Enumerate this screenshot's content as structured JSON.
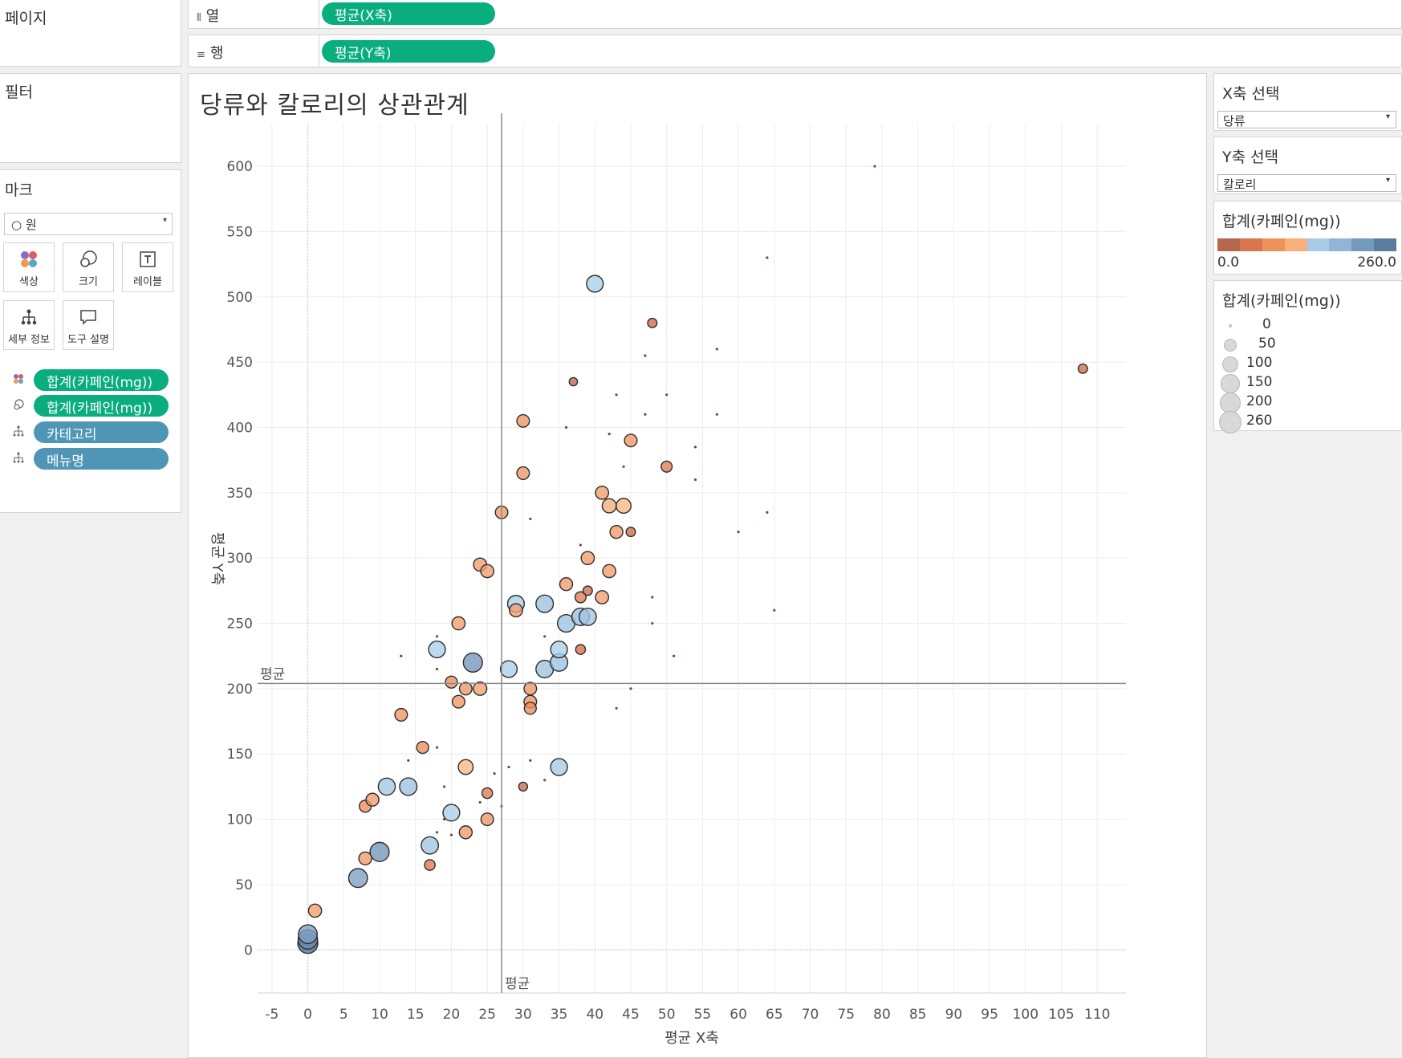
{
  "shelves": {
    "pages_label": "페이지",
    "filters_label": "필터",
    "columns_label": "열",
    "columns_icon": "column-bars-icon",
    "columns_pill": "평균(X축)",
    "rows_label": "행",
    "rows_icon": "row-lines-icon",
    "rows_pill": "평균(Y축)"
  },
  "marks": {
    "title": "마크",
    "mark_type": "○ 원",
    "buttons": [
      {
        "label": "색상",
        "icon": "color-dots-icon"
      },
      {
        "label": "크기",
        "icon": "size-circles-icon"
      },
      {
        "label": "레이블",
        "icon": "text-label-icon"
      },
      {
        "label": "세부 정보",
        "icon": "detail-tree-icon"
      },
      {
        "label": "도구 설명",
        "icon": "tooltip-bubble-icon"
      }
    ],
    "fields": [
      {
        "icon": "color-dots-icon",
        "label": "합계(카페인(mg))",
        "kind": "measure"
      },
      {
        "icon": "size-circles-icon",
        "label": "합계(카페인(mg))",
        "kind": "measure"
      },
      {
        "icon": "detail-tree-icon",
        "label": "카테고리",
        "kind": "dimension"
      },
      {
        "icon": "detail-tree-icon",
        "label": "메뉴명",
        "kind": "dimension"
      }
    ]
  },
  "right_panel": {
    "x_select_title": "X축 선택",
    "x_select_value": "당류",
    "y_select_title": "Y축 선택",
    "y_select_value": "칼로리",
    "color_legend_title": "합계(카페인(mg))",
    "color_min": "0.0",
    "color_max": "260.0",
    "color_ramp": [
      "#b6684f",
      "#d8774f",
      "#ee9358",
      "#f8b07a",
      "#a9cae6",
      "#90b5d6",
      "#7399bd",
      "#5a7d9f"
    ],
    "size_legend_title": "합계(카페인(mg))",
    "size_legend": [
      "0",
      "50",
      "100",
      "150",
      "200",
      "260"
    ]
  },
  "chart_data": {
    "type": "scatter",
    "title": "당류와 칼로리의 상관관계",
    "xlabel": "평균 X축",
    "ylabel": "평균 Y축",
    "xlim": [
      -7,
      114
    ],
    "ylim": [
      -33,
      632
    ],
    "x_ticks": [
      -5,
      0,
      5,
      10,
      15,
      20,
      25,
      30,
      35,
      40,
      45,
      50,
      55,
      60,
      65,
      70,
      75,
      80,
      85,
      90,
      95,
      100,
      105,
      110
    ],
    "y_ticks": [
      0,
      50,
      100,
      150,
      200,
      250,
      300,
      350,
      400,
      450,
      500,
      550,
      600
    ],
    "grid": true,
    "reference_lines": {
      "x_avg": 27,
      "y_avg": 204,
      "label": "평균"
    },
    "color_field": "합계(카페인(mg))",
    "size_field": "합계(카페인(mg))",
    "points": [
      {
        "x": 0,
        "y": 5,
        "c": 260
      },
      {
        "x": 0,
        "y": 8,
        "c": 240
      },
      {
        "x": 0,
        "y": 12,
        "c": 220
      },
      {
        "x": 1,
        "y": 30,
        "c": 80
      },
      {
        "x": 7,
        "y": 55,
        "c": 220
      },
      {
        "x": 10,
        "y": 75,
        "c": 230
      },
      {
        "x": 8,
        "y": 70,
        "c": 75
      },
      {
        "x": 8,
        "y": 110,
        "c": 60
      },
      {
        "x": 9,
        "y": 115,
        "c": 75
      },
      {
        "x": 11,
        "y": 125,
        "c": 170
      },
      {
        "x": 14,
        "y": 125,
        "c": 180
      },
      {
        "x": 17,
        "y": 80,
        "c": 175
      },
      {
        "x": 17,
        "y": 65,
        "c": 40
      },
      {
        "x": 20,
        "y": 105,
        "c": 160
      },
      {
        "x": 22,
        "y": 90,
        "c": 75
      },
      {
        "x": 25,
        "y": 100,
        "c": 70
      },
      {
        "x": 25,
        "y": 120,
        "c": 40
      },
      {
        "x": 22,
        "y": 140,
        "c": 115
      },
      {
        "x": 16,
        "y": 155,
        "c": 60
      },
      {
        "x": 13,
        "y": 180,
        "c": 70
      },
      {
        "x": 21,
        "y": 190,
        "c": 70
      },
      {
        "x": 20,
        "y": 205,
        "c": 60
      },
      {
        "x": 22,
        "y": 200,
        "c": 70
      },
      {
        "x": 24,
        "y": 200,
        "c": 85
      },
      {
        "x": 18,
        "y": 230,
        "c": 160
      },
      {
        "x": 23,
        "y": 220,
        "c": 230
      },
      {
        "x": 21,
        "y": 250,
        "c": 80
      },
      {
        "x": 24,
        "y": 295,
        "c": 80
      },
      {
        "x": 25,
        "y": 290,
        "c": 80
      },
      {
        "x": 27,
        "y": 335,
        "c": 70
      },
      {
        "x": 28,
        "y": 215,
        "c": 160
      },
      {
        "x": 29,
        "y": 265,
        "c": 160
      },
      {
        "x": 29,
        "y": 260,
        "c": 80
      },
      {
        "x": 33,
        "y": 265,
        "c": 180
      },
      {
        "x": 31,
        "y": 200,
        "c": 70
      },
      {
        "x": 31,
        "y": 190,
        "c": 70
      },
      {
        "x": 31,
        "y": 185,
        "c": 60
      },
      {
        "x": 30,
        "y": 125,
        "c": 20
      },
      {
        "x": 35,
        "y": 140,
        "c": 165
      },
      {
        "x": 33,
        "y": 215,
        "c": 180
      },
      {
        "x": 35,
        "y": 220,
        "c": 180
      },
      {
        "x": 35,
        "y": 230,
        "c": 160
      },
      {
        "x": 36,
        "y": 250,
        "c": 180
      },
      {
        "x": 38,
        "y": 255,
        "c": 180
      },
      {
        "x": 39,
        "y": 255,
        "c": 175
      },
      {
        "x": 36,
        "y": 280,
        "c": 75
      },
      {
        "x": 38,
        "y": 270,
        "c": 45
      },
      {
        "x": 39,
        "y": 275,
        "c": 25
      },
      {
        "x": 38,
        "y": 230,
        "c": 30
      },
      {
        "x": 39,
        "y": 300,
        "c": 80
      },
      {
        "x": 41,
        "y": 270,
        "c": 80
      },
      {
        "x": 42,
        "y": 290,
        "c": 80
      },
      {
        "x": 41,
        "y": 350,
        "c": 80
      },
      {
        "x": 42,
        "y": 340,
        "c": 100
      },
      {
        "x": 44,
        "y": 340,
        "c": 115
      },
      {
        "x": 43,
        "y": 320,
        "c": 75
      },
      {
        "x": 45,
        "y": 320,
        "c": 25
      },
      {
        "x": 45,
        "y": 390,
        "c": 70
      },
      {
        "x": 50,
        "y": 370,
        "c": 45
      },
      {
        "x": 30,
        "y": 365,
        "c": 70
      },
      {
        "x": 30,
        "y": 405,
        "c": 70
      },
      {
        "x": 37,
        "y": 435,
        "c": 15
      },
      {
        "x": 48,
        "y": 480,
        "c": 25
      },
      {
        "x": 40,
        "y": 510,
        "c": 160
      },
      {
        "x": 108,
        "y": 445,
        "c": 25
      },
      {
        "x": 79,
        "y": 600,
        "c": 0
      },
      {
        "x": 64,
        "y": 530,
        "c": 0
      },
      {
        "x": 57,
        "y": 460,
        "c": 0
      },
      {
        "x": 47,
        "y": 455,
        "c": 0
      },
      {
        "x": 43,
        "y": 425,
        "c": 0
      },
      {
        "x": 50,
        "y": 425,
        "c": 0
      },
      {
        "x": 47,
        "y": 410,
        "c": 0
      },
      {
        "x": 57,
        "y": 410,
        "c": 0
      },
      {
        "x": 36,
        "y": 400,
        "c": 0
      },
      {
        "x": 42,
        "y": 395,
        "c": 0
      },
      {
        "x": 54,
        "y": 385,
        "c": 0
      },
      {
        "x": 44,
        "y": 370,
        "c": 0
      },
      {
        "x": 54,
        "y": 360,
        "c": 0
      },
      {
        "x": 64,
        "y": 335,
        "c": 0
      },
      {
        "x": 31,
        "y": 330,
        "c": 0
      },
      {
        "x": 60,
        "y": 320,
        "c": 0
      },
      {
        "x": 38,
        "y": 310,
        "c": 0
      },
      {
        "x": 48,
        "y": 270,
        "c": 0
      },
      {
        "x": 65,
        "y": 260,
        "c": 0
      },
      {
        "x": 48,
        "y": 250,
        "c": 0
      },
      {
        "x": 33,
        "y": 240,
        "c": 0
      },
      {
        "x": 51,
        "y": 225,
        "c": 0
      },
      {
        "x": 13,
        "y": 225,
        "c": 0
      },
      {
        "x": 18,
        "y": 240,
        "c": 0
      },
      {
        "x": 18,
        "y": 215,
        "c": 0
      },
      {
        "x": 45,
        "y": 200,
        "c": 0
      },
      {
        "x": 43,
        "y": 185,
        "c": 0
      },
      {
        "x": 18,
        "y": 155,
        "c": 0
      },
      {
        "x": 14,
        "y": 145,
        "c": 0
      },
      {
        "x": 31,
        "y": 145,
        "c": 0
      },
      {
        "x": 28,
        "y": 140,
        "c": 0
      },
      {
        "x": 26,
        "y": 135,
        "c": 0
      },
      {
        "x": 19,
        "y": 125,
        "c": 0
      },
      {
        "x": 33,
        "y": 130,
        "c": 0
      },
      {
        "x": 27,
        "y": 110,
        "c": 0
      },
      {
        "x": 19,
        "y": 100,
        "c": 0
      },
      {
        "x": 20,
        "y": 88,
        "c": 0
      },
      {
        "x": 18,
        "y": 90,
        "c": 0
      },
      {
        "x": 24,
        "y": 113,
        "c": 0
      }
    ]
  }
}
